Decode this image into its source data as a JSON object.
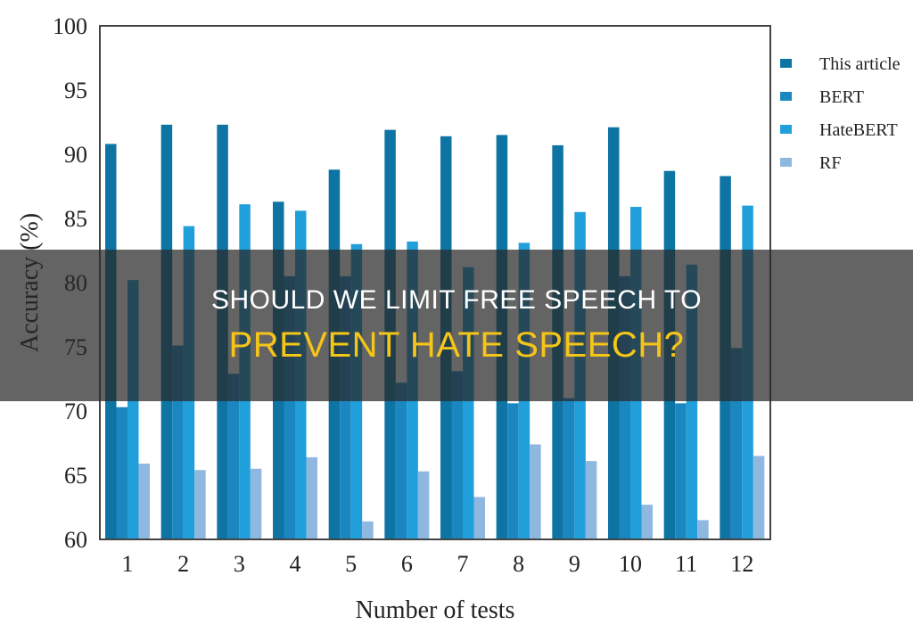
{
  "chart_data": {
    "type": "bar",
    "title": "",
    "xlabel": "Number of tests",
    "ylabel": "Accuracy (%)",
    "ylim": [
      60,
      100
    ],
    "yticks": [
      60,
      65,
      70,
      75,
      80,
      85,
      90,
      95,
      100
    ],
    "grid": false,
    "legend_position": "right",
    "categories": [
      "1",
      "2",
      "3",
      "4",
      "5",
      "6",
      "7",
      "8",
      "9",
      "10",
      "11",
      "12"
    ],
    "series": [
      {
        "name": "This article",
        "color": "#0e74a3",
        "values": [
          90.8,
          92.3,
          92.3,
          86.3,
          88.8,
          91.9,
          91.4,
          91.5,
          90.7,
          92.1,
          88.7,
          88.3
        ]
      },
      {
        "name": "BERT",
        "color": "#1b87c0",
        "values": [
          70.3,
          75.1,
          72.9,
          80.5,
          80.5,
          72.2,
          73.1,
          70.6,
          71.0,
          80.5,
          70.6,
          74.9
        ]
      },
      {
        "name": "HateBERT",
        "color": "#219fdb",
        "values": [
          80.2,
          84.4,
          86.1,
          85.6,
          83.0,
          83.2,
          81.2,
          83.1,
          85.5,
          85.9,
          81.4,
          86.0
        ]
      },
      {
        "name": "RF",
        "color": "#8fb8e0",
        "values": [
          65.9,
          65.4,
          65.5,
          66.4,
          61.4,
          65.3,
          63.3,
          67.4,
          66.1,
          62.7,
          61.5,
          66.5
        ]
      }
    ]
  },
  "overlay": {
    "line1": "SHOULD WE LIMIT FREE SPEECH TO",
    "line2": "PREVENT HATE SPEECH?",
    "line1_color": "#ffffff",
    "line2_color": "#f5c518"
  }
}
